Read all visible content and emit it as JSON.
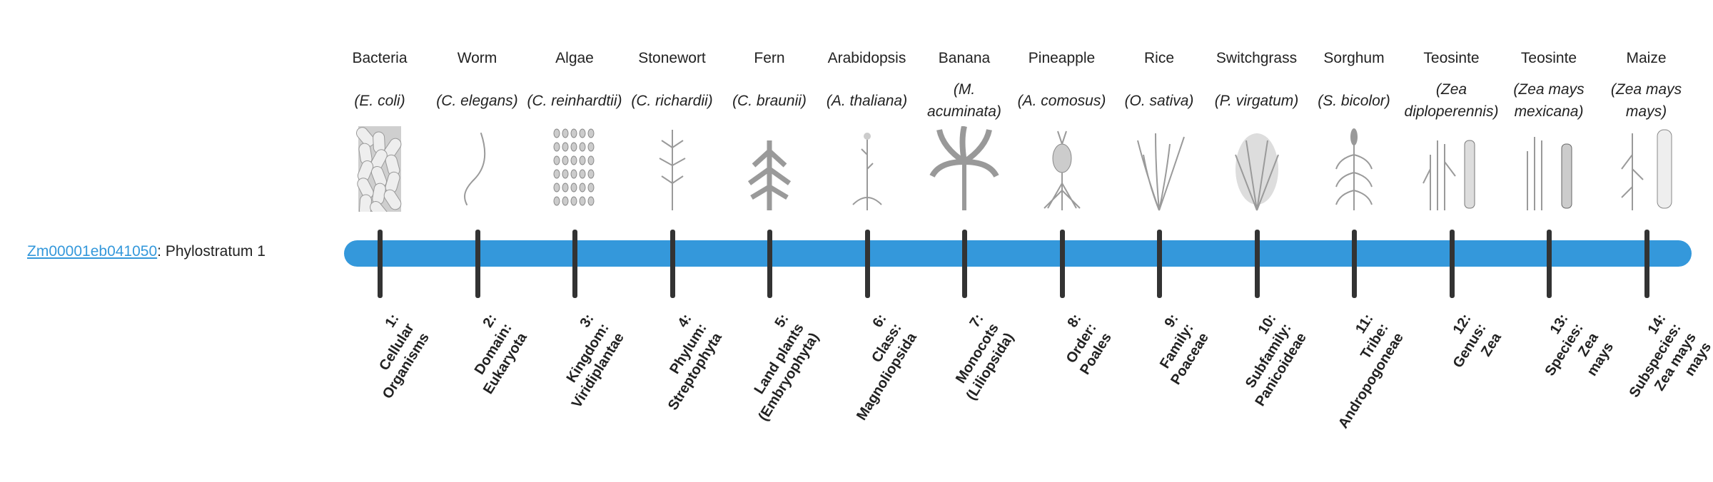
{
  "gene": {
    "id": "Zm00001eb041050",
    "suffix": ": Phylostratum 1"
  },
  "colors": {
    "bar": "#3498db",
    "tick": "#333333",
    "link": "#3498db",
    "illustration": "#9a9a9a"
  },
  "strata": [
    {
      "common": "Bacteria",
      "species": "(E. coli)",
      "rank": "1:\nCellular\nOrganisms",
      "icon": "bacteria-icon"
    },
    {
      "common": "Worm",
      "species": "(C. elegans)",
      "rank": "2:\nDomain:\nEukaryota",
      "icon": "worm-icon"
    },
    {
      "common": "Algae",
      "species": "(C. reinhardtii)",
      "rank": "3:\nKingdom:\nViridiplantae",
      "icon": "algae-icon"
    },
    {
      "common": "Stonewort",
      "species": "(C. richardii)",
      "rank": "4:\nPhylum:\nStreptophyta",
      "icon": "stonewort-icon"
    },
    {
      "common": "Fern",
      "species": "(C. braunii)",
      "rank": "5:\nLand plants\n(Embryophyta)",
      "icon": "fern-icon"
    },
    {
      "common": "Arabidopsis",
      "species": "(A. thaliana)",
      "rank": "6:\nClass:\nMagnoliopsida",
      "icon": "arabidopsis-icon"
    },
    {
      "common": "Banana",
      "species": "(M. acuminata)",
      "rank": "7:\nMonocots\n(Liliopsida)",
      "icon": "banana-icon"
    },
    {
      "common": "Pineapple",
      "species": "(A. comosus)",
      "rank": "8:\nOrder:\nPoales",
      "icon": "pineapple-icon"
    },
    {
      "common": "Rice",
      "species": "(O. sativa)",
      "rank": "9:\nFamily:\nPoaceae",
      "icon": "rice-icon"
    },
    {
      "common": "Switchgrass",
      "species": "(P. virgatum)",
      "rank": "10:\nSubfamily:\nPanicoideae",
      "icon": "switchgrass-icon"
    },
    {
      "common": "Sorghum",
      "species": "(S. bicolor)",
      "rank": "11:\nTribe:\nAndropogoneae",
      "icon": "sorghum-icon"
    },
    {
      "common": "Teosinte",
      "species": "(Zea diploperennis)",
      "rank": "12:\nGenus:\nZea",
      "icon": "teosinte-icon"
    },
    {
      "common": "Teosinte",
      "species": "(Zea mays mexicana)",
      "rank": "13:\nSpecies:\nZea\nmays",
      "icon": "teosinte-icon"
    },
    {
      "common": "Maize",
      "species": "(Zea mays mays)",
      "rank": "14:\nSubspecies:\nZea mays\nmays",
      "icon": "maize-icon"
    }
  ]
}
